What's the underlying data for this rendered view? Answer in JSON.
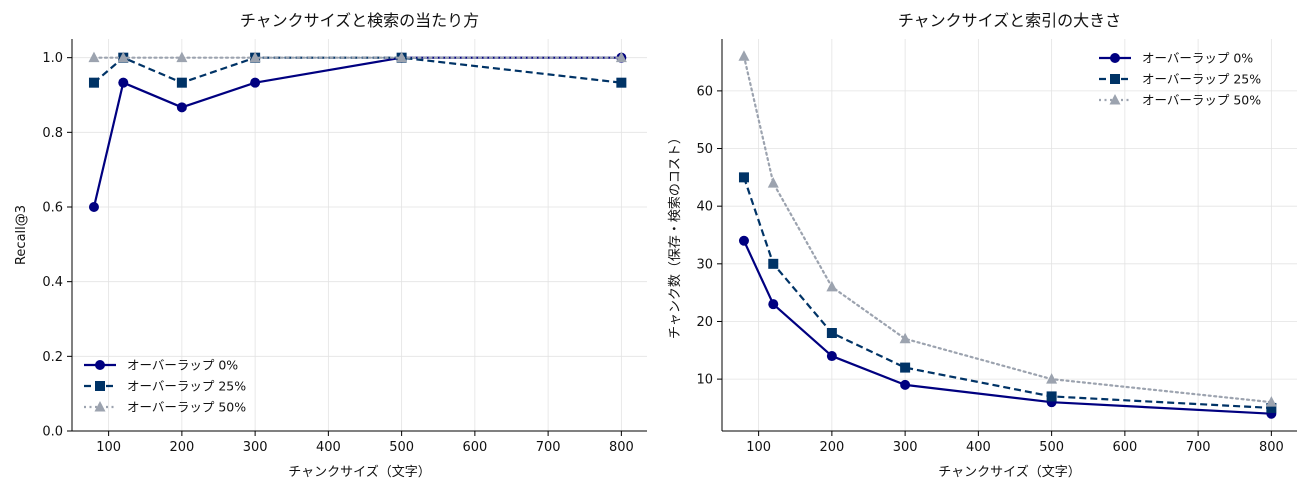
{
  "chart_data": [
    {
      "type": "line",
      "title": "チャンクサイズと検索の当たり方",
      "xlabel": "チャンクサイズ（文字）",
      "ylabel": "Recall@3",
      "x": [
        80,
        120,
        200,
        300,
        500,
        800
      ],
      "xlim": [
        50,
        835
      ],
      "ylim": [
        0,
        1.05
      ],
      "xticks": [
        100,
        200,
        300,
        400,
        500,
        600,
        700,
        800
      ],
      "yticks": [
        0.0,
        0.2,
        0.4,
        0.6,
        0.8,
        1.0
      ],
      "ytick_labels": [
        "0.0",
        "0.2",
        "0.4",
        "0.6",
        "0.8",
        "1.0"
      ],
      "grid": true,
      "legend_position": "lower-left",
      "series": [
        {
          "name": "オーバーラップ 0%",
          "values": [
            0.6,
            0.933,
            0.867,
            0.933,
            1.0,
            1.0
          ],
          "color": "#000080",
          "dash": "solid",
          "marker": "circle"
        },
        {
          "name": "オーバーラップ 25%",
          "values": [
            0.933,
            1.0,
            0.933,
            1.0,
            1.0,
            0.933
          ],
          "color": "#003366",
          "dash": "dashed",
          "marker": "square"
        },
        {
          "name": "オーバーラップ 50%",
          "values": [
            1.0,
            1.0,
            1.0,
            1.0,
            1.0,
            1.0
          ],
          "color": "#9ca3af",
          "dash": "dotted",
          "marker": "triangle"
        }
      ]
    },
    {
      "type": "line",
      "title": "チャンクサイズと索引の大きさ",
      "xlabel": "チャンクサイズ（文字）",
      "ylabel": "チャンク数（保存・検索のコスト）",
      "x": [
        80,
        120,
        200,
        300,
        500,
        800
      ],
      "xlim": [
        50,
        835
      ],
      "ylim": [
        1,
        69
      ],
      "xticks": [
        100,
        200,
        300,
        400,
        500,
        600,
        700,
        800
      ],
      "yticks": [
        10,
        20,
        30,
        40,
        50,
        60
      ],
      "ytick_labels": [
        "10",
        "20",
        "30",
        "40",
        "50",
        "60"
      ],
      "grid": true,
      "legend_position": "upper-right",
      "series": [
        {
          "name": "オーバーラップ 0%",
          "values": [
            34,
            23,
            14,
            9,
            6,
            4
          ],
          "color": "#000080",
          "dash": "solid",
          "marker": "circle"
        },
        {
          "name": "オーバーラップ 25%",
          "values": [
            45,
            30,
            18,
            12,
            7,
            5
          ],
          "color": "#003366",
          "dash": "dashed",
          "marker": "square"
        },
        {
          "name": "オーバーラップ 50%",
          "values": [
            66,
            44,
            26,
            17,
            10,
            6
          ],
          "color": "#9ca3af",
          "dash": "dotted",
          "marker": "triangle"
        }
      ]
    }
  ]
}
